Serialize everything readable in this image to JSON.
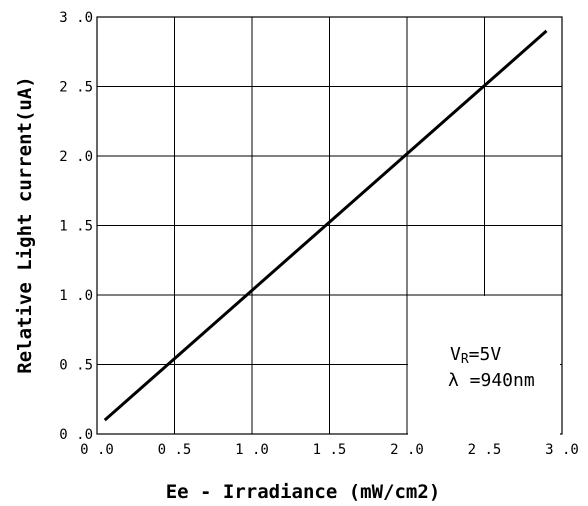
{
  "chart_data": {
    "type": "line",
    "xlabel": "Ee - Irradiance (mW/cm2)",
    "ylabel": "Relative Light current(uA)",
    "xlim": [
      0.0,
      3.0
    ],
    "ylim": [
      0.0,
      3.0
    ],
    "x_ticks": [
      "0.0",
      "0.5",
      "1.0",
      "1.5",
      "2.0",
      "2.5",
      "3.0"
    ],
    "y_ticks": [
      "0.0",
      "0.5",
      "1.0",
      "1.5",
      "2.0",
      "2.5",
      "3.0"
    ],
    "grid": true,
    "series": [
      {
        "x": [
          0.05,
          2.9
        ],
        "y": [
          0.1,
          2.9
        ]
      }
    ],
    "annotations": {
      "vr_main": "V",
      "vr_sub": "R",
      "vr_value": "=5V",
      "lambda": "λ =940nm"
    }
  },
  "colors": {
    "line": "#000000",
    "grid": "#000000",
    "background": "#ffffff"
  }
}
